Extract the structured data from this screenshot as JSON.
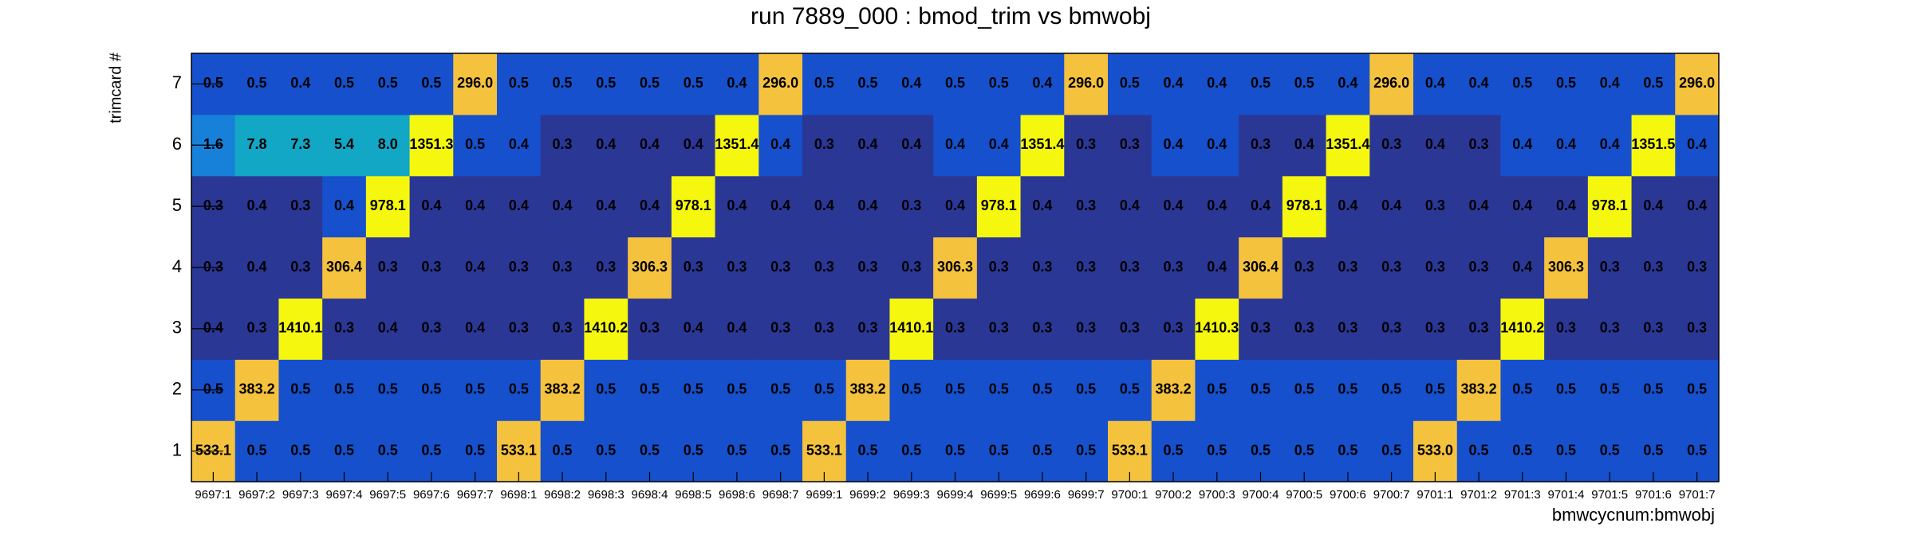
{
  "chart_data": {
    "type": "heatmap",
    "title": "run 7889_000 : bmod_trim vs bmwobj",
    "x_label": "bmwcycnum:bmwobj",
    "y_label": "trimcard #",
    "x_categories": [
      "9697:1",
      "9697:2",
      "9697:3",
      "9697:4",
      "9697:5",
      "9697:6",
      "9697:7",
      "9698:1",
      "9698:2",
      "9698:3",
      "9698:4",
      "9698:5",
      "9698:6",
      "9698:7",
      "9699:1",
      "9699:2",
      "9699:3",
      "9699:4",
      "9699:5",
      "9699:6",
      "9699:7",
      "9700:1",
      "9700:2",
      "9700:3",
      "9700:4",
      "9700:5",
      "9700:6",
      "9700:7",
      "9701:1",
      "9701:2",
      "9701:3",
      "9701:4",
      "9701:5",
      "9701:6",
      "9701:7"
    ],
    "y_categories": [
      "1",
      "2",
      "3",
      "4",
      "5",
      "6",
      "7"
    ],
    "values": [
      [
        533.1,
        0.5,
        0.5,
        0.5,
        0.5,
        0.5,
        0.5,
        533.1,
        0.5,
        0.5,
        0.5,
        0.5,
        0.5,
        0.5,
        533.1,
        0.5,
        0.5,
        0.5,
        0.5,
        0.5,
        0.5,
        533.1,
        0.5,
        0.5,
        0.5,
        0.5,
        0.5,
        0.5,
        533.0,
        0.5,
        0.5,
        0.5,
        0.5,
        0.5,
        0.5
      ],
      [
        0.5,
        383.2,
        0.5,
        0.5,
        0.5,
        0.5,
        0.5,
        0.5,
        383.2,
        0.5,
        0.5,
        0.5,
        0.5,
        0.5,
        0.5,
        383.2,
        0.5,
        0.5,
        0.5,
        0.5,
        0.5,
        0.5,
        383.2,
        0.5,
        0.5,
        0.5,
        0.5,
        0.5,
        0.5,
        383.2,
        0.5,
        0.5,
        0.5,
        0.5,
        0.5
      ],
      [
        0.4,
        0.3,
        1410.1,
        0.3,
        0.4,
        0.3,
        0.4,
        0.3,
        0.3,
        1410.2,
        0.3,
        0.4,
        0.4,
        0.3,
        0.3,
        0.3,
        1410.1,
        0.3,
        0.3,
        0.3,
        0.3,
        0.3,
        0.3,
        1410.3,
        0.3,
        0.3,
        0.3,
        0.3,
        0.3,
        0.3,
        1410.2,
        0.3,
        0.3,
        0.3,
        0.3
      ],
      [
        0.3,
        0.4,
        0.3,
        306.4,
        0.3,
        0.3,
        0.4,
        0.3,
        0.3,
        0.3,
        306.3,
        0.3,
        0.3,
        0.3,
        0.3,
        0.3,
        0.3,
        306.3,
        0.3,
        0.3,
        0.3,
        0.3,
        0.3,
        0.4,
        306.4,
        0.3,
        0.3,
        0.3,
        0.3,
        0.3,
        0.4,
        306.3,
        0.3,
        0.3,
        0.3
      ],
      [
        0.3,
        0.4,
        0.3,
        0.4,
        978.1,
        0.4,
        0.4,
        0.4,
        0.4,
        0.4,
        0.4,
        978.1,
        0.4,
        0.4,
        0.4,
        0.4,
        0.3,
        0.4,
        978.1,
        0.4,
        0.3,
        0.4,
        0.4,
        0.4,
        0.4,
        978.1,
        0.4,
        0.4,
        0.3,
        0.4,
        0.4,
        0.4,
        978.1,
        0.4,
        0.4
      ],
      [
        1.6,
        7.8,
        7.3,
        5.4,
        8.0,
        1351.3,
        0.5,
        0.4,
        0.3,
        0.4,
        0.4,
        0.4,
        1351.4,
        0.4,
        0.3,
        0.4,
        0.4,
        0.4,
        0.4,
        1351.4,
        0.3,
        0.3,
        0.4,
        0.4,
        0.3,
        0.4,
        1351.4,
        0.3,
        0.4,
        0.3,
        0.4,
        0.4,
        0.4,
        1351.5,
        0.4
      ],
      [
        0.5,
        0.5,
        0.4,
        0.5,
        0.5,
        0.5,
        296.0,
        0.5,
        0.5,
        0.5,
        0.5,
        0.5,
        0.4,
        296.0,
        0.5,
        0.5,
        0.4,
        0.5,
        0.5,
        0.4,
        296.0,
        0.5,
        0.4,
        0.4,
        0.5,
        0.5,
        0.4,
        296.0,
        0.4,
        0.4,
        0.5,
        0.5,
        0.4,
        0.5,
        296.0
      ]
    ],
    "value_labels": [
      [
        "533.1",
        "0.5",
        "0.5",
        "0.5",
        "0.5",
        "0.5",
        "0.5",
        "533.1",
        "0.5",
        "0.5",
        "0.5",
        "0.5",
        "0.5",
        "0.5",
        "533.1",
        "0.5",
        "0.5",
        "0.5",
        "0.5",
        "0.5",
        "0.5",
        "533.1",
        "0.5",
        "0.5",
        "0.5",
        "0.5",
        "0.5",
        "0.5",
        "533.0",
        "0.5",
        "0.5",
        "0.5",
        "0.5",
        "0.5",
        "0.5"
      ],
      [
        "0.5",
        "383.2",
        "0.5",
        "0.5",
        "0.5",
        "0.5",
        "0.5",
        "0.5",
        "383.2",
        "0.5",
        "0.5",
        "0.5",
        "0.5",
        "0.5",
        "0.5",
        "383.2",
        "0.5",
        "0.5",
        "0.5",
        "0.5",
        "0.5",
        "0.5",
        "383.2",
        "0.5",
        "0.5",
        "0.5",
        "0.5",
        "0.5",
        "0.5",
        "383.2",
        "0.5",
        "0.5",
        "0.5",
        "0.5",
        "0.5"
      ],
      [
        "0.4",
        "0.3",
        "1410.1",
        "0.3",
        "0.4",
        "0.3",
        "0.4",
        "0.3",
        "0.3",
        "1410.2",
        "0.3",
        "0.4",
        "0.4",
        "0.3",
        "0.3",
        "0.3",
        "1410.1",
        "0.3",
        "0.3",
        "0.3",
        "0.3",
        "0.3",
        "0.3",
        "1410.3",
        "0.3",
        "0.3",
        "0.3",
        "0.3",
        "0.3",
        "0.3",
        "1410.2",
        "0.3",
        "0.3",
        "0.3",
        "0.3"
      ],
      [
        "0.3",
        "0.4",
        "0.3",
        "306.4",
        "0.3",
        "0.3",
        "0.4",
        "0.3",
        "0.3",
        "0.3",
        "306.3",
        "0.3",
        "0.3",
        "0.3",
        "0.3",
        "0.3",
        "0.3",
        "306.3",
        "0.3",
        "0.3",
        "0.3",
        "0.3",
        "0.3",
        "0.4",
        "306.4",
        "0.3",
        "0.3",
        "0.3",
        "0.3",
        "0.3",
        "0.4",
        "306.3",
        "0.3",
        "0.3",
        "0.3"
      ],
      [
        "0.3",
        "0.4",
        "0.3",
        "0.4",
        "978.1",
        "0.4",
        "0.4",
        "0.4",
        "0.4",
        "0.4",
        "0.4",
        "978.1",
        "0.4",
        "0.4",
        "0.4",
        "0.4",
        "0.3",
        "0.4",
        "978.1",
        "0.4",
        "0.3",
        "0.4",
        "0.4",
        "0.4",
        "0.4",
        "978.1",
        "0.4",
        "0.4",
        "0.3",
        "0.4",
        "0.4",
        "0.4",
        "978.1",
        "0.4",
        "0.4"
      ],
      [
        "1.6",
        "7.8",
        "7.3",
        "5.4",
        "8.0",
        "1351.3",
        "0.5",
        "0.4",
        "0.3",
        "0.4",
        "0.4",
        "0.4",
        "1351.4",
        "0.4",
        "0.3",
        "0.4",
        "0.4",
        "0.4",
        "0.4",
        "1351.4",
        "0.3",
        "0.3",
        "0.4",
        "0.4",
        "0.3",
        "0.4",
        "1351.4",
        "0.3",
        "0.4",
        "0.3",
        "0.4",
        "0.4",
        "0.4",
        "1351.5",
        "0.4"
      ],
      [
        "0.5",
        "0.5",
        "0.4",
        "0.5",
        "0.5",
        "0.5",
        "296.0",
        "0.5",
        "0.5",
        "0.5",
        "0.5",
        "0.5",
        "0.4",
        "296.0",
        "0.5",
        "0.5",
        "0.4",
        "0.5",
        "0.5",
        "0.4",
        "296.0",
        "0.5",
        "0.4",
        "0.4",
        "0.5",
        "0.5",
        "0.4",
        "296.0",
        "0.4",
        "0.4",
        "0.5",
        "0.5",
        "0.4",
        "0.5",
        "296.0"
      ]
    ],
    "colors": [
      [
        "#f5c23e",
        "#1650cc",
        "#1650cc",
        "#1650cc",
        "#1650cc",
        "#1650cc",
        "#1650cc",
        "#f5c23e",
        "#1650cc",
        "#1650cc",
        "#1650cc",
        "#1650cc",
        "#1650cc",
        "#1650cc",
        "#f5c23e",
        "#1650cc",
        "#1650cc",
        "#1650cc",
        "#1650cc",
        "#1650cc",
        "#1650cc",
        "#f5c23e",
        "#1650cc",
        "#1650cc",
        "#1650cc",
        "#1650cc",
        "#1650cc",
        "#1650cc",
        "#f5c23e",
        "#1650cc",
        "#1650cc",
        "#1650cc",
        "#1650cc",
        "#1650cc",
        "#1650cc"
      ],
      [
        "#1650cc",
        "#f5c23e",
        "#1650cc",
        "#1650cc",
        "#1650cc",
        "#1650cc",
        "#1650cc",
        "#1650cc",
        "#f5c23e",
        "#1650cc",
        "#1650cc",
        "#1650cc",
        "#1650cc",
        "#1650cc",
        "#1650cc",
        "#f5c23e",
        "#1650cc",
        "#1650cc",
        "#1650cc",
        "#1650cc",
        "#1650cc",
        "#1650cc",
        "#f5c23e",
        "#1650cc",
        "#1650cc",
        "#1650cc",
        "#1650cc",
        "#1650cc",
        "#1650cc",
        "#f5c23e",
        "#1650cc",
        "#1650cc",
        "#1650cc",
        "#1650cc",
        "#1650cc"
      ],
      [
        "#2b3795",
        "#2b3795",
        "#f6f70f",
        "#2b3795",
        "#2b3795",
        "#2b3795",
        "#2b3795",
        "#2b3795",
        "#2b3795",
        "#f6f70f",
        "#2b3795",
        "#2b3795",
        "#2b3795",
        "#2b3795",
        "#2b3795",
        "#2b3795",
        "#f6f70f",
        "#2b3795",
        "#2b3795",
        "#2b3795",
        "#2b3795",
        "#2b3795",
        "#2b3795",
        "#f6f70f",
        "#2b3795",
        "#2b3795",
        "#2b3795",
        "#2b3795",
        "#2b3795",
        "#2b3795",
        "#f6f70f",
        "#2b3795",
        "#2b3795",
        "#2b3795",
        "#2b3795"
      ],
      [
        "#2b3795",
        "#2b3795",
        "#2b3795",
        "#f5c23e",
        "#2b3795",
        "#2b3795",
        "#2b3795",
        "#2b3795",
        "#2b3795",
        "#2b3795",
        "#f5c23e",
        "#2b3795",
        "#2b3795",
        "#2b3795",
        "#2b3795",
        "#2b3795",
        "#2b3795",
        "#f5c23e",
        "#2b3795",
        "#2b3795",
        "#2b3795",
        "#2b3795",
        "#2b3795",
        "#2b3795",
        "#f5c23e",
        "#2b3795",
        "#2b3795",
        "#2b3795",
        "#2b3795",
        "#2b3795",
        "#2b3795",
        "#f5c23e",
        "#2b3795",
        "#2b3795",
        "#2b3795"
      ],
      [
        "#2b3795",
        "#2b3795",
        "#2b3795",
        "#1650cc",
        "#f6f70f",
        "#2b3795",
        "#2b3795",
        "#2b3795",
        "#2b3795",
        "#2b3795",
        "#2b3795",
        "#f6f70f",
        "#2b3795",
        "#2b3795",
        "#2b3795",
        "#2b3795",
        "#2b3795",
        "#2b3795",
        "#f6f70f",
        "#2b3795",
        "#2b3795",
        "#2b3795",
        "#2b3795",
        "#2b3795",
        "#2b3795",
        "#f6f70f",
        "#2b3795",
        "#2b3795",
        "#2b3795",
        "#2b3795",
        "#2b3795",
        "#2b3795",
        "#f6f70f",
        "#2b3795",
        "#2b3795"
      ],
      [
        "#1781da",
        "#13a7c6",
        "#13a7c6",
        "#13a7c6",
        "#13a7c6",
        "#f6f70f",
        "#1650cc",
        "#1650cc",
        "#2b3795",
        "#2b3795",
        "#2b3795",
        "#2b3795",
        "#f6f70f",
        "#1650cc",
        "#2b3795",
        "#2b3795",
        "#2b3795",
        "#1650cc",
        "#1650cc",
        "#f6f70f",
        "#2b3795",
        "#2b3795",
        "#1650cc",
        "#1650cc",
        "#2b3795",
        "#2b3795",
        "#f6f70f",
        "#2b3795",
        "#2b3795",
        "#2b3795",
        "#1650cc",
        "#1650cc",
        "#1650cc",
        "#f6f70f",
        "#1650cc"
      ],
      [
        "#1650cc",
        "#1650cc",
        "#1650cc",
        "#1650cc",
        "#1650cc",
        "#1650cc",
        "#f5c23e",
        "#1650cc",
        "#1650cc",
        "#1650cc",
        "#1650cc",
        "#1650cc",
        "#1650cc",
        "#f5c23e",
        "#1650cc",
        "#1650cc",
        "#1650cc",
        "#1650cc",
        "#1650cc",
        "#1650cc",
        "#f5c23e",
        "#1650cc",
        "#1650cc",
        "#1650cc",
        "#1650cc",
        "#1650cc",
        "#1650cc",
        "#f5c23e",
        "#1650cc",
        "#1650cc",
        "#1650cc",
        "#1650cc",
        "#1650cc",
        "#1650cc",
        "#f5c23e"
      ]
    ]
  }
}
